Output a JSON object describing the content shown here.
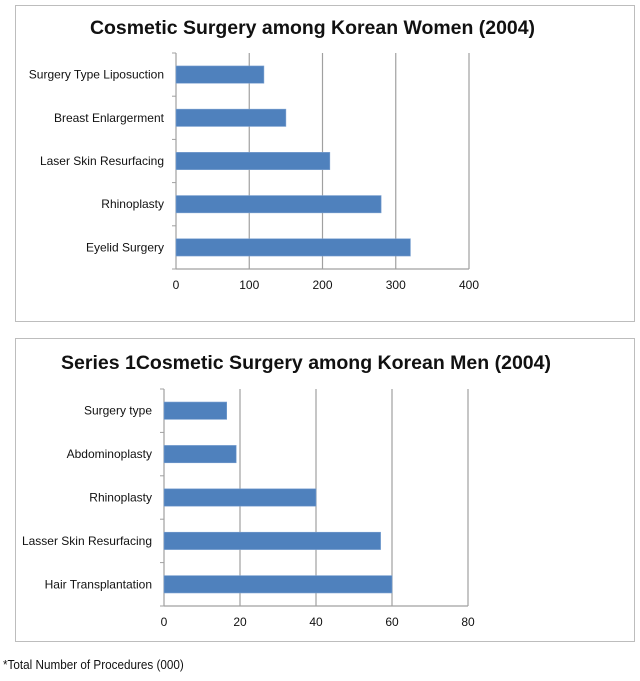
{
  "chart_data": [
    {
      "type": "bar",
      "orientation": "horizontal",
      "title": "Cosmetic Surgery among Korean Women (2004)",
      "categories": [
        "Surgery Type Liposuction",
        "Breast Enlargerment",
        "Laser Skin Resurfacing",
        "Rhinoplasty",
        "Eyelid Surgery"
      ],
      "values": [
        120,
        150,
        210,
        280,
        320
      ],
      "xlim": [
        0,
        400
      ],
      "xticks": [
        0,
        100,
        200,
        300,
        400
      ],
      "grid": true,
      "color": "#4f81bd"
    },
    {
      "type": "bar",
      "orientation": "horizontal",
      "title": "Series 1Cosmetic Surgery among Korean Men (2004)",
      "categories": [
        "Surgery type",
        "Abdominoplasty",
        "Rhinoplasty",
        "Lasser Skin Resurfacing",
        "Hair Transplantation"
      ],
      "values": [
        16.5,
        19,
        40,
        57,
        60
      ],
      "xlim": [
        0,
        80
      ],
      "xticks": [
        0,
        20,
        40,
        60,
        80
      ],
      "grid": true,
      "color": "#4f81bd"
    }
  ],
  "footnote": "*Total Number of Procedures (000)"
}
